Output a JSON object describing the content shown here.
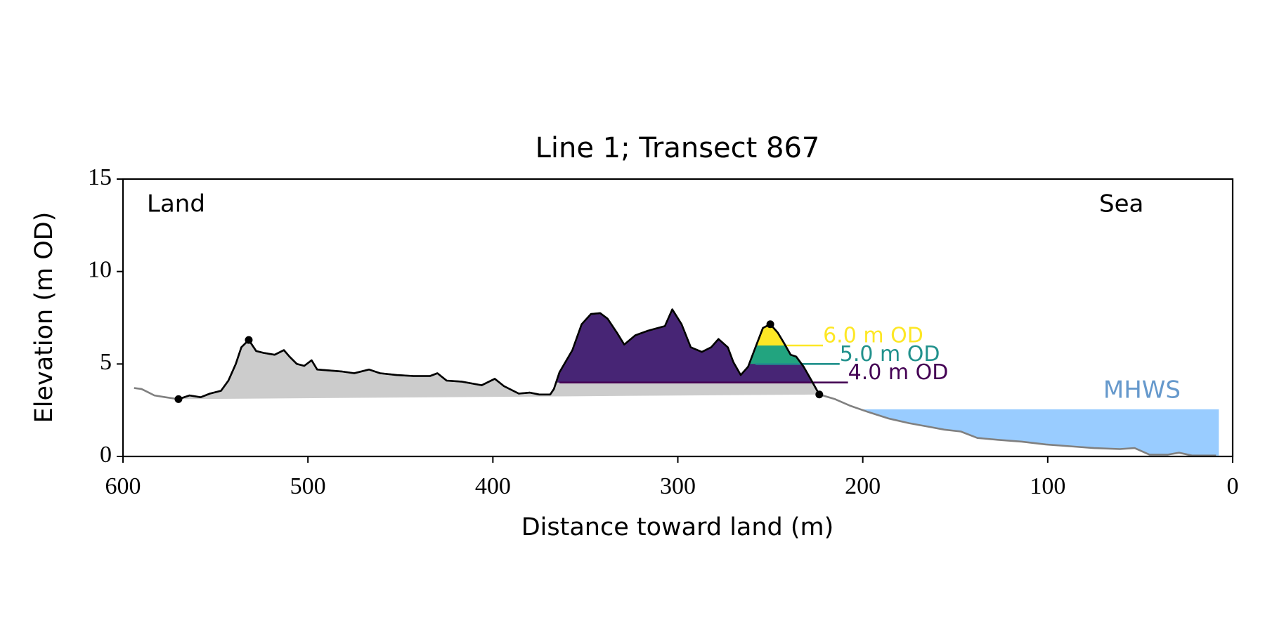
{
  "chart_data": {
    "type": "profile",
    "title": "Line 1; Transect 867",
    "xlabel": "Distance toward land (m)",
    "ylabel": "Elevation (m OD)",
    "xlim": [
      600,
      0
    ],
    "ylim": [
      0,
      15
    ],
    "xticks": [
      600,
      500,
      400,
      300,
      200,
      100,
      0
    ],
    "yticks": [
      0,
      5,
      10,
      15
    ],
    "annotations": {
      "land": "Land",
      "sea": "Sea"
    },
    "profile": {
      "color": "#808080",
      "highlight_color": "#000000",
      "fill": "#cccccc",
      "x": [
        594,
        590,
        587,
        583,
        577,
        570,
        564,
        558,
        553,
        547,
        543,
        539,
        536,
        532,
        528,
        524,
        518,
        513,
        510,
        506,
        502,
        498,
        495,
        482,
        475,
        467,
        461,
        452,
        443,
        434,
        430,
        425,
        417,
        406,
        399,
        394,
        386,
        380,
        375,
        369,
        367,
        364,
        357,
        352,
        347,
        342,
        338,
        333,
        329,
        323,
        316,
        307,
        303,
        298,
        293,
        287,
        282,
        278,
        273,
        270,
        266,
        262,
        258,
        254,
        250,
        246,
        243,
        239,
        236,
        232,
        228,
        223.5,
        215,
        207,
        197,
        186,
        175,
        164,
        156,
        147,
        138,
        127,
        114,
        101,
        88,
        75,
        61,
        53,
        45,
        35,
        29,
        22,
        9
      ],
      "y": [
        3.7,
        3.65,
        3.5,
        3.3,
        3.2,
        3.1,
        3.3,
        3.2,
        3.4,
        3.55,
        4.1,
        5.0,
        5.9,
        6.3,
        5.7,
        5.6,
        5.5,
        5.75,
        5.4,
        5.0,
        4.9,
        5.2,
        4.7,
        4.6,
        4.5,
        4.7,
        4.5,
        4.4,
        4.35,
        4.35,
        4.5,
        4.1,
        4.05,
        3.85,
        4.2,
        3.8,
        3.4,
        3.45,
        3.35,
        3.35,
        3.65,
        4.55,
        5.75,
        7.15,
        7.7,
        7.75,
        7.45,
        6.7,
        6.05,
        6.55,
        6.8,
        7.05,
        7.95,
        7.15,
        5.9,
        5.65,
        5.9,
        6.35,
        5.9,
        5.1,
        4.4,
        4.85,
        5.9,
        6.95,
        7.15,
        6.7,
        6.2,
        5.5,
        5.4,
        4.85,
        4.15,
        3.35,
        3.1,
        2.75,
        2.4,
        2.05,
        1.8,
        1.6,
        1.45,
        1.35,
        1.0,
        0.9,
        0.8,
        0.65,
        0.55,
        0.45,
        0.4,
        0.45,
        0.1,
        0.1,
        0.2,
        0.05,
        0.05
      ]
    },
    "markers": {
      "x": [
        570,
        532,
        250,
        223.5
      ],
      "y": [
        3.1,
        6.3,
        7.15,
        3.35
      ],
      "color": "#000000"
    },
    "levels": [
      {
        "value": 4.0,
        "label": "4.0 m OD",
        "color": "#440154",
        "fill": "#472575",
        "x": [
          364,
          208
        ]
      },
      {
        "value": 5.0,
        "label": "5.0 m OD",
        "color": "#21918c",
        "fill": "#22a47f",
        "x": [
          258,
          212.5
        ]
      },
      {
        "value": 6.0,
        "label": "6.0 m OD",
        "color": "#fde725",
        "fill": "#fde725",
        "x": [
          242,
          221.5
        ]
      }
    ],
    "mhws": {
      "label": "MHWS",
      "value": 2.55,
      "x": [
        200,
        7.5
      ],
      "color": "#99ccff",
      "label_color": "#6699cc"
    }
  }
}
